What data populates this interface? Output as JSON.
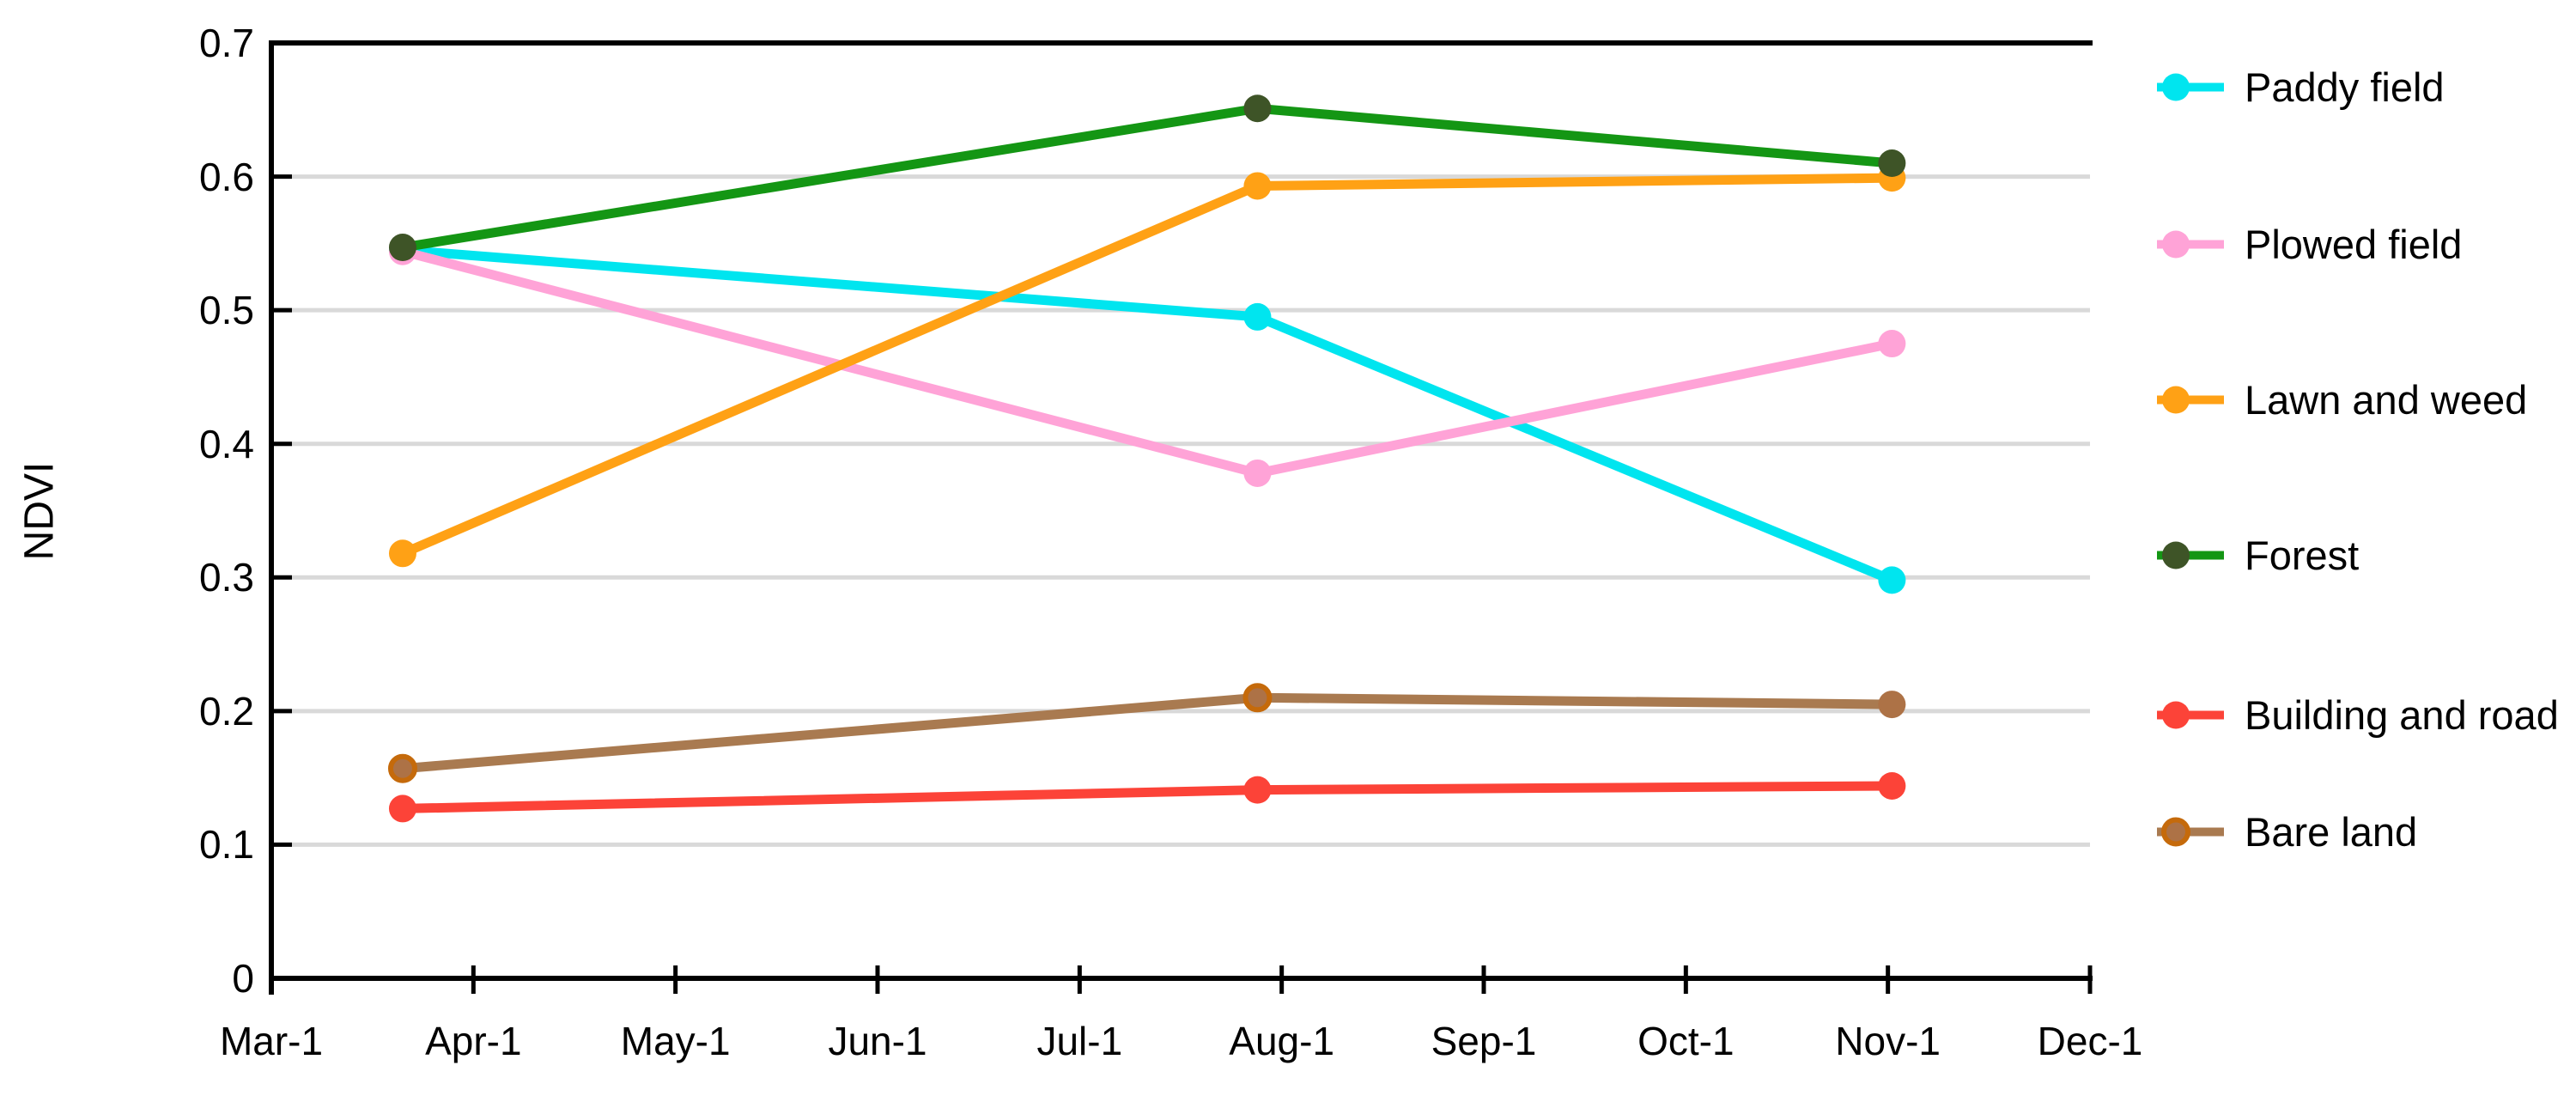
{
  "chart_data": {
    "type": "line",
    "title": "",
    "ylabel": "NDVI",
    "xlabel": "",
    "ylim": [
      0,
      0.7
    ],
    "grid": "horizontal-light-gray",
    "legend_position": "right",
    "y_ticks": [
      "0",
      "0.1",
      "0.2",
      "0.3",
      "0.4",
      "0.5",
      "0.6",
      "0.7"
    ],
    "x_ticks": [
      "Mar-1",
      "Apr-1",
      "May-1",
      "Jun-1",
      "Jul-1",
      "Aug-1",
      "Sep-1",
      "Oct-1",
      "Nov-1",
      "Dec-1"
    ],
    "x_offsets_months": [
      0.65,
      4.88,
      8.02
    ],
    "x_point_dates_approx": [
      "Mar-20",
      "Jul-28",
      "Nov-1"
    ],
    "colors": {
      "gridline": "#D9D9D9",
      "axis": "#000000",
      "text": "#000000"
    },
    "series": [
      {
        "name": "Paddy field",
        "color": "#00E5EF",
        "values": [
          0.545,
          0.495,
          0.298
        ]
      },
      {
        "name": "Plowed field",
        "color": "#FFA3D7",
        "values": [
          0.544,
          0.378,
          0.475
        ]
      },
      {
        "name": "Lawn and weed",
        "color": "#FFA115",
        "values": [
          0.318,
          0.593,
          0.599
        ]
      },
      {
        "name": "Forest",
        "color": "#149614",
        "marker_color": "#3E5427",
        "values": [
          0.547,
          0.651,
          0.61
        ]
      },
      {
        "name": "Building and road",
        "color": "#FC4338",
        "values": [
          0.127,
          0.141,
          0.144
        ]
      },
      {
        "name": "Bare land",
        "color": "#A97A50",
        "marker_color": "#AD7246",
        "marker_border": "#C56A0B",
        "no_border_on_last": true,
        "values": [
          0.157,
          0.21,
          0.205
        ]
      }
    ]
  }
}
